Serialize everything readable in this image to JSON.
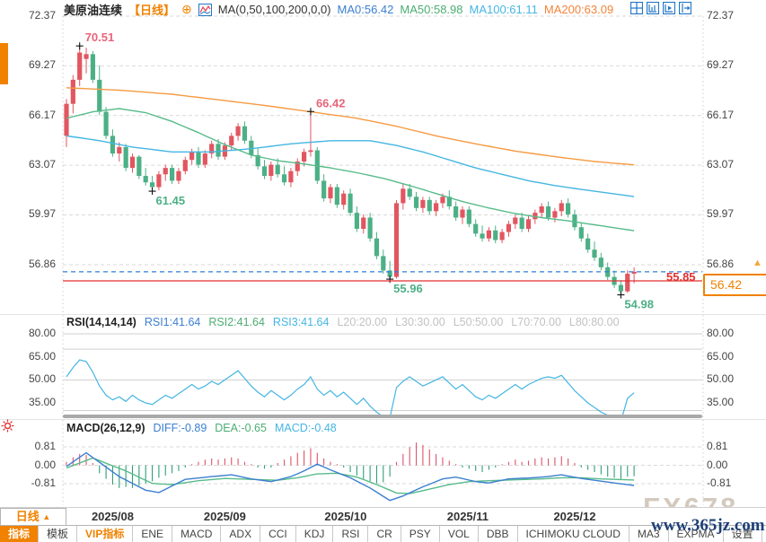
{
  "header": {
    "title": "美原油连续",
    "timeframe_tag": "【日线】",
    "ma_label": "MA(0,50,100,200,0,0)",
    "ma_values": [
      {
        "text": "MA0:56.42",
        "color": "#3b7fd0"
      },
      {
        "text": "MA50:58.98",
        "color": "#4cae74"
      },
      {
        "text": "MA100:61.11",
        "color": "#45b6e2"
      },
      {
        "text": "MA200:63.09",
        "color": "#f0853c"
      }
    ]
  },
  "rsi_panel": {
    "label": "RSI(14,14,14)",
    "values": [
      {
        "text": "RSI1:41.64",
        "color": "#3b7fd0"
      },
      {
        "text": "RSI2:41.64",
        "color": "#4cae74"
      },
      {
        "text": "RSI3:41.64",
        "color": "#45b6e2"
      }
    ],
    "levels": [
      "L20:20.00",
      "L30:30.00",
      "L50:50.00",
      "L70:70.00",
      "L80:80.00"
    ]
  },
  "macd_panel": {
    "label": "MACD(26,12,9)",
    "values": [
      {
        "text": "DIFF:-0.89",
        "color": "#3b7fd0"
      },
      {
        "text": "DEA:-0.65",
        "color": "#4cae74"
      },
      {
        "text": "MACD:-0.48",
        "color": "#45b6e2"
      }
    ]
  },
  "price_lines": {
    "last_label": "56.42",
    "alert_label": "55.85"
  },
  "bottom": {
    "timeframe": "日线",
    "timeframe_arrow": "▲",
    "toolbar": [
      {
        "label": "指标",
        "state": "active"
      },
      {
        "label": "模板",
        "state": ""
      },
      {
        "label": "VIP指标",
        "state": "vip"
      },
      {
        "label": "ENE",
        "state": ""
      },
      {
        "label": "MACD",
        "state": ""
      },
      {
        "label": "ADX",
        "state": ""
      },
      {
        "label": "CCI",
        "state": ""
      },
      {
        "label": "KDJ",
        "state": ""
      },
      {
        "label": "RSI",
        "state": ""
      },
      {
        "label": "CR",
        "state": ""
      },
      {
        "label": "PSY",
        "state": ""
      },
      {
        "label": "VOL",
        "state": ""
      },
      {
        "label": "DBB",
        "state": ""
      },
      {
        "label": "ICHIMOKU CLOUD",
        "state": ""
      },
      {
        "label": "MA3",
        "state": ""
      },
      {
        "label": "EXPMA",
        "state": ""
      },
      {
        "label": "设置",
        "state": ""
      }
    ]
  },
  "watermark": {
    "line1": "FX678",
    "line2": "www.365jz.com"
  },
  "colors": {
    "up": "#e15660",
    "down": "#4cb086",
    "ma50": "#57bb8a",
    "ma100": "#45b6e2",
    "ma200": "#f59b42",
    "rsi": "#45b6e2",
    "diff": "#3b7fd0",
    "dea": "#57bb8a",
    "hist_up": "#dd5468",
    "hist_down": "#2f9e77",
    "grid": "#d9d9d9",
    "level": "#cfcfcf",
    "last_line": "#2f7ed8",
    "alert_line": "#e03030",
    "accent": "#f08200",
    "axis_text": "#444444",
    "ann_up": "#e8647a",
    "ann_down": "#4cb086",
    "marker": "#111111"
  },
  "chart_data": {
    "type": "candlestick",
    "symbol": "美原油连续",
    "timeframe": "日线",
    "price_axis": [
      72.37,
      69.27,
      66.17,
      63.07,
      59.97,
      56.86
    ],
    "last_price": 56.42,
    "alert_price": 55.85,
    "months": [
      {
        "label": "2025/08",
        "bar": 7
      },
      {
        "label": "2025/09",
        "bar": 24
      },
      {
        "label": "2025/10",
        "bar": 42.3
      },
      {
        "label": "2025/11",
        "bar": 60.8
      },
      {
        "label": "2025/12",
        "bar": 77
      }
    ],
    "annotations": [
      {
        "bar": 2,
        "price": 70.51,
        "text": "70.51",
        "tone": "up",
        "pos": "above"
      },
      {
        "bar": 13,
        "price": 61.45,
        "text": "61.45",
        "tone": "down",
        "pos": "below"
      },
      {
        "bar": 37,
        "price": 66.42,
        "text": "66.42",
        "tone": "up",
        "pos": "above"
      },
      {
        "bar": 49,
        "price": 55.96,
        "text": "55.96",
        "tone": "down",
        "pos": "below"
      },
      {
        "bar": 84,
        "price": 54.98,
        "text": "54.98",
        "tone": "down",
        "pos": "below"
      }
    ],
    "candles": [
      [
        64.9,
        67.2,
        64.2,
        66.9
      ],
      [
        66.9,
        68.7,
        66.3,
        68.4
      ],
      [
        68.4,
        70.51,
        68.0,
        70.1
      ],
      [
        69.7,
        70.4,
        68.8,
        70.0
      ],
      [
        70.0,
        70.2,
        68.2,
        68.4
      ],
      [
        68.4,
        69.3,
        66.2,
        66.4
      ],
      [
        66.4,
        66.7,
        64.7,
        64.9
      ],
      [
        64.9,
        65.3,
        63.6,
        63.8
      ],
      [
        63.8,
        64.5,
        63.3,
        64.2
      ],
      [
        64.2,
        64.4,
        62.7,
        62.9
      ],
      [
        62.9,
        63.8,
        62.6,
        63.6
      ],
      [
        63.6,
        63.7,
        62.2,
        62.4
      ],
      [
        62.4,
        62.9,
        61.8,
        62.0
      ],
      [
        62.0,
        62.4,
        61.45,
        61.7
      ],
      [
        61.7,
        62.7,
        61.5,
        62.5
      ],
      [
        62.5,
        63.1,
        62.1,
        62.9
      ],
      [
        62.9,
        63.1,
        61.9,
        62.1
      ],
      [
        62.1,
        62.9,
        61.9,
        62.7
      ],
      [
        62.7,
        63.6,
        62.5,
        63.4
      ],
      [
        63.4,
        64.1,
        63.1,
        63.9
      ],
      [
        63.9,
        64.2,
        62.9,
        63.1
      ],
      [
        63.1,
        64.0,
        62.9,
        63.8
      ],
      [
        63.8,
        64.6,
        63.5,
        64.4
      ],
      [
        64.4,
        64.7,
        63.4,
        63.6
      ],
      [
        63.6,
        64.5,
        63.4,
        64.3
      ],
      [
        64.3,
        65.1,
        64.0,
        64.9
      ],
      [
        64.9,
        65.7,
        64.6,
        65.5
      ],
      [
        65.5,
        65.8,
        64.4,
        64.6
      ],
      [
        64.6,
        64.9,
        63.5,
        63.7
      ],
      [
        63.7,
        64.1,
        62.8,
        63.0
      ],
      [
        63.0,
        63.4,
        62.2,
        62.4
      ],
      [
        62.4,
        63.3,
        62.1,
        63.1
      ],
      [
        63.1,
        63.5,
        62.3,
        62.5
      ],
      [
        62.5,
        63.0,
        61.8,
        62.0
      ],
      [
        62.0,
        62.9,
        61.7,
        62.7
      ],
      [
        62.7,
        63.5,
        62.4,
        63.3
      ],
      [
        63.3,
        64.1,
        63.0,
        63.9
      ],
      [
        63.9,
        66.42,
        63.6,
        64.0
      ],
      [
        64.0,
        64.2,
        61.9,
        62.1
      ],
      [
        62.1,
        62.5,
        60.8,
        61.0
      ],
      [
        61.0,
        61.9,
        60.7,
        61.7
      ],
      [
        61.7,
        61.9,
        60.4,
        60.6
      ],
      [
        60.6,
        61.5,
        60.3,
        61.3
      ],
      [
        61.3,
        61.6,
        59.9,
        60.1
      ],
      [
        60.1,
        60.5,
        58.9,
        59.1
      ],
      [
        59.1,
        60.0,
        58.8,
        59.8
      ],
      [
        59.8,
        60.1,
        58.3,
        58.5
      ],
      [
        58.5,
        58.9,
        57.2,
        57.4
      ],
      [
        57.4,
        57.8,
        56.3,
        56.5
      ],
      [
        56.5,
        57.1,
        55.96,
        56.1
      ],
      [
        56.1,
        60.9,
        56.0,
        60.7
      ],
      [
        60.7,
        61.9,
        60.3,
        61.6
      ],
      [
        61.6,
        61.9,
        60.9,
        61.1
      ],
      [
        61.1,
        61.4,
        60.2,
        60.4
      ],
      [
        60.4,
        61.1,
        60.1,
        60.9
      ],
      [
        60.9,
        61.1,
        60.0,
        60.2
      ],
      [
        60.2,
        60.9,
        59.9,
        60.7
      ],
      [
        60.7,
        61.3,
        60.4,
        61.1
      ],
      [
        61.1,
        61.5,
        60.3,
        60.5
      ],
      [
        60.5,
        60.8,
        59.6,
        59.8
      ],
      [
        59.8,
        60.5,
        59.4,
        60.3
      ],
      [
        60.3,
        60.5,
        59.2,
        59.4
      ],
      [
        59.4,
        59.7,
        58.6,
        58.8
      ],
      [
        58.8,
        59.3,
        58.3,
        58.5
      ],
      [
        58.5,
        59.2,
        58.3,
        59.0
      ],
      [
        59.0,
        59.3,
        58.2,
        58.4
      ],
      [
        58.4,
        59.1,
        58.2,
        58.9
      ],
      [
        58.9,
        59.6,
        58.6,
        59.4
      ],
      [
        59.4,
        60.0,
        59.1,
        59.8
      ],
      [
        59.8,
        60.1,
        58.9,
        59.1
      ],
      [
        59.1,
        59.9,
        58.9,
        59.7
      ],
      [
        59.7,
        60.3,
        59.4,
        60.1
      ],
      [
        60.1,
        60.7,
        59.8,
        60.5
      ],
      [
        60.5,
        60.8,
        59.6,
        59.8
      ],
      [
        59.8,
        60.4,
        59.5,
        60.2
      ],
      [
        60.2,
        60.9,
        59.9,
        60.7
      ],
      [
        60.7,
        61.0,
        59.8,
        60.0
      ],
      [
        60.0,
        60.3,
        59.0,
        59.2
      ],
      [
        59.2,
        59.5,
        58.3,
        58.5
      ],
      [
        58.5,
        58.8,
        57.6,
        57.8
      ],
      [
        57.8,
        58.3,
        57.1,
        57.3
      ],
      [
        57.3,
        57.6,
        56.5,
        56.7
      ],
      [
        56.7,
        57.0,
        55.9,
        56.1
      ],
      [
        56.1,
        56.5,
        55.4,
        55.6
      ],
      [
        55.6,
        55.9,
        54.98,
        55.2
      ],
      [
        55.2,
        56.5,
        55.1,
        56.3
      ],
      [
        56.3,
        56.7,
        55.7,
        56.42
      ]
    ],
    "ma": {
      "ma200": [
        [
          0,
          67.9
        ],
        [
          8,
          67.75
        ],
        [
          16,
          67.5
        ],
        [
          24,
          67.1
        ],
        [
          30,
          66.8
        ],
        [
          37,
          66.4
        ],
        [
          44,
          66.0
        ],
        [
          50,
          65.5
        ],
        [
          56,
          64.9
        ],
        [
          62,
          64.4
        ],
        [
          68,
          63.95
        ],
        [
          74,
          63.6
        ],
        [
          80,
          63.3
        ],
        [
          86,
          63.09
        ]
      ],
      "ma100": [
        [
          0,
          64.9
        ],
        [
          5,
          64.6
        ],
        [
          10,
          64.2
        ],
        [
          16,
          63.9
        ],
        [
          22,
          63.9
        ],
        [
          28,
          64.1
        ],
        [
          34,
          64.4
        ],
        [
          40,
          64.6
        ],
        [
          46,
          64.6
        ],
        [
          50,
          64.3
        ],
        [
          54,
          63.9
        ],
        [
          58,
          63.4
        ],
        [
          62,
          62.9
        ],
        [
          66,
          62.5
        ],
        [
          70,
          62.1
        ],
        [
          74,
          61.8
        ],
        [
          79,
          61.5
        ],
        [
          86,
          61.11
        ]
      ],
      "ma50": [
        [
          0,
          66.0
        ],
        [
          4,
          66.4
        ],
        [
          8,
          66.6
        ],
        [
          12,
          66.35
        ],
        [
          16,
          65.8
        ],
        [
          20,
          65.1
        ],
        [
          24,
          64.35
        ],
        [
          28,
          63.7
        ],
        [
          32,
          63.35
        ],
        [
          36,
          63.15
        ],
        [
          40,
          62.9
        ],
        [
          44,
          62.6
        ],
        [
          48,
          62.25
        ],
        [
          52,
          61.8
        ],
        [
          56,
          61.3
        ],
        [
          60,
          60.8
        ],
        [
          64,
          60.4
        ],
        [
          68,
          60.05
        ],
        [
          72,
          59.8
        ],
        [
          76,
          59.6
        ],
        [
          80,
          59.35
        ],
        [
          86,
          58.98
        ]
      ]
    },
    "rsi": {
      "axis": [
        80,
        65,
        50,
        35
      ],
      "level_lines": [
        80,
        70,
        50,
        30
      ],
      "series": [
        52,
        58,
        63,
        62,
        55,
        46,
        40,
        37,
        39,
        36,
        40,
        37,
        35,
        34,
        37,
        40,
        38,
        41,
        44,
        47,
        44,
        46,
        49,
        47,
        50,
        53,
        56,
        51,
        46,
        42,
        39,
        43,
        40,
        37,
        40,
        44,
        47,
        52,
        44,
        40,
        43,
        39,
        42,
        38,
        34,
        38,
        33,
        29,
        26,
        25,
        45,
        49,
        52,
        49,
        46,
        48,
        50,
        52,
        48,
        44,
        47,
        43,
        39,
        37,
        40,
        38,
        41,
        44,
        47,
        44,
        47,
        49,
        51,
        52,
        51,
        53,
        48,
        43,
        39,
        35,
        32,
        29,
        27,
        25,
        23,
        38,
        41.6
      ]
    },
    "macd": {
      "axis": [
        0.81,
        0,
        -0.81
      ],
      "hist": [
        0.15,
        0.35,
        0.5,
        0.45,
        0.1,
        -0.35,
        -0.6,
        -0.85,
        -1.0,
        -0.95,
        -1.0,
        -0.9,
        -0.8,
        -0.7,
        -0.55,
        -0.45,
        -0.35,
        -0.25,
        -0.1,
        0.05,
        0.15,
        0.25,
        0.3,
        0.25,
        0.3,
        0.35,
        0.3,
        0.15,
        0.05,
        -0.1,
        -0.15,
        -0.1,
        0.1,
        0.25,
        0.4,
        0.55,
        0.65,
        0.75,
        0.55,
        0.3,
        0.15,
        0.05,
        -0.1,
        -0.3,
        -0.45,
        -0.6,
        -0.7,
        -0.8,
        -0.75,
        -0.5,
        0.15,
        0.5,
        0.8,
        1.0,
        0.9,
        0.7,
        0.5,
        0.35,
        0.2,
        0.05,
        -0.1,
        -0.15,
        -0.25,
        -0.3,
        -0.2,
        -0.1,
        0.05,
        0.15,
        0.25,
        0.15,
        0.2,
        0.3,
        0.35,
        0.3,
        0.35,
        0.4,
        0.3,
        0.1,
        -0.1,
        -0.2,
        -0.3,
        -0.4,
        -0.5,
        -0.55,
        -0.6,
        -0.5,
        -0.48
      ],
      "diff": [
        [
          0,
          -0.05
        ],
        [
          3,
          0.55
        ],
        [
          8,
          -0.5
        ],
        [
          12,
          -1.1
        ],
        [
          14,
          -1.2
        ],
        [
          18,
          -0.62
        ],
        [
          22,
          -0.5
        ],
        [
          25,
          -0.42
        ],
        [
          28,
          -0.6
        ],
        [
          31,
          -0.72
        ],
        [
          34,
          -0.5
        ],
        [
          36,
          -0.25
        ],
        [
          38,
          0.05
        ],
        [
          40,
          -0.2
        ],
        [
          43,
          -0.55
        ],
        [
          46,
          -1.0
        ],
        [
          49,
          -1.55
        ],
        [
          51,
          -1.35
        ],
        [
          54,
          -0.95
        ],
        [
          57,
          -0.6
        ],
        [
          59,
          -0.52
        ],
        [
          62,
          -0.72
        ],
        [
          64,
          -0.78
        ],
        [
          67,
          -0.6
        ],
        [
          70,
          -0.56
        ],
        [
          73,
          -0.5
        ],
        [
          75,
          -0.42
        ],
        [
          78,
          -0.58
        ],
        [
          81,
          -0.7
        ],
        [
          84,
          -0.82
        ],
        [
          86,
          -0.89
        ]
      ],
      "dea": [
        [
          0,
          -0.12
        ],
        [
          4,
          0.32
        ],
        [
          9,
          -0.25
        ],
        [
          13,
          -0.8
        ],
        [
          16,
          -0.85
        ],
        [
          20,
          -0.68
        ],
        [
          24,
          -0.58
        ],
        [
          28,
          -0.62
        ],
        [
          32,
          -0.66
        ],
        [
          35,
          -0.55
        ],
        [
          38,
          -0.38
        ],
        [
          41,
          -0.35
        ],
        [
          44,
          -0.52
        ],
        [
          47,
          -0.85
        ],
        [
          50,
          -1.22
        ],
        [
          52,
          -1.25
        ],
        [
          55,
          -1.05
        ],
        [
          58,
          -0.85
        ],
        [
          61,
          -0.72
        ],
        [
          64,
          -0.68
        ],
        [
          68,
          -0.64
        ],
        [
          72,
          -0.6
        ],
        [
          75,
          -0.55
        ],
        [
          78,
          -0.55
        ],
        [
          81,
          -0.6
        ],
        [
          84,
          -0.63
        ],
        [
          86,
          -0.65
        ]
      ]
    }
  }
}
